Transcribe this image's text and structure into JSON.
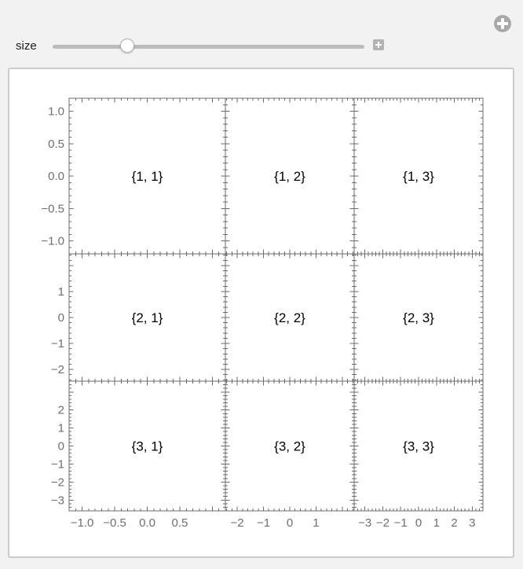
{
  "controls": {
    "size_label": "size",
    "slider": {
      "fraction": 0.24
    },
    "inline_plus": "+",
    "corner_plus": "+"
  },
  "plot_grid": {
    "cells": [
      [
        "{1, 1}",
        "{1, 2}",
        "{1, 3}"
      ],
      [
        "{2, 1}",
        "{2, 2}",
        "{2, 3}"
      ],
      [
        "{3, 1}",
        "{3, 2}",
        "{3, 3}"
      ]
    ],
    "rows": [
      {
        "range": 1.2,
        "major_step": 0.5,
        "minor_step": 0.1,
        "tick_labels": [
          {
            "v": 1.0,
            "t": "1.0"
          },
          {
            "v": 0.5,
            "t": "0.5"
          },
          {
            "v": 0.0,
            "t": "0.0"
          },
          {
            "v": -0.5,
            "t": "−0.5"
          },
          {
            "v": -1.0,
            "t": "−1.0"
          }
        ]
      },
      {
        "range": 2.45,
        "major_step": 1,
        "minor_step": 0.2,
        "tick_labels": [
          {
            "v": 1,
            "t": "1"
          },
          {
            "v": 0,
            "t": "0"
          },
          {
            "v": -1,
            "t": "−1"
          },
          {
            "v": -2,
            "t": "−2"
          }
        ]
      },
      {
        "range": 3.6,
        "major_step": 1,
        "minor_step": 0.2,
        "tick_labels": [
          {
            "v": 2,
            "t": "2"
          },
          {
            "v": 1,
            "t": "1"
          },
          {
            "v": 0,
            "t": "0"
          },
          {
            "v": -1,
            "t": "−1"
          },
          {
            "v": -2,
            "t": "−2"
          },
          {
            "v": -3,
            "t": "−3"
          }
        ]
      }
    ],
    "cols": [
      {
        "range": 1.2,
        "major_step": 0.5,
        "minor_step": 0.1,
        "tick_labels": [
          {
            "v": -1.0,
            "t": "−1.0"
          },
          {
            "v": -0.5,
            "t": "−0.5"
          },
          {
            "v": 0.0,
            "t": "0.0"
          },
          {
            "v": 0.5,
            "t": "0.5"
          }
        ]
      },
      {
        "range": 2.45,
        "major_step": 1,
        "minor_step": 0.2,
        "tick_labels": [
          {
            "v": -2,
            "t": "−2"
          },
          {
            "v": -1,
            "t": "−1"
          },
          {
            "v": 0,
            "t": "0"
          },
          {
            "v": 1,
            "t": "1"
          }
        ]
      },
      {
        "range": 3.6,
        "major_step": 1,
        "minor_step": 0.2,
        "tick_labels": [
          {
            "v": -3,
            "t": "−3"
          },
          {
            "v": -2,
            "t": "−2"
          },
          {
            "v": -1,
            "t": "−1"
          },
          {
            "v": 0,
            "t": "0"
          },
          {
            "v": 1,
            "t": "1"
          },
          {
            "v": 2,
            "t": "2"
          },
          {
            "v": 3,
            "t": "3"
          }
        ]
      }
    ],
    "layout": {
      "col_edges": [
        88,
        287,
        451,
        615
      ],
      "row_edges": [
        125,
        323,
        485,
        650
      ],
      "major_tick_len": 5.5,
      "minor_tick_len": 3
    }
  },
  "icons": {
    "inline_plus_icon": "plus-icon",
    "corner_plus_icon": "plus-icon"
  },
  "colors": {
    "page_bg": "#f2f2f2",
    "panel_bg": "#ffffff",
    "panel_border": "#cbcbcb",
    "frame": "#6b6b6b",
    "tick_label": "#6f6f6f",
    "cell_label": "#000000",
    "slider_track": "#bcbcbc",
    "widget_gray": "#a9a9a9"
  }
}
